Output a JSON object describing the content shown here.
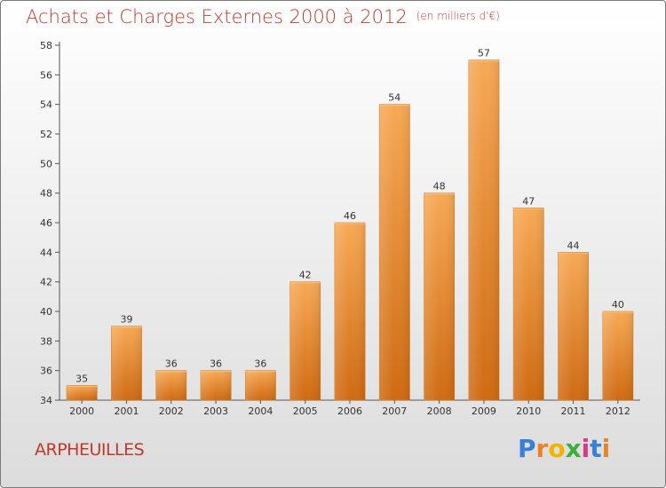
{
  "title": "Achats et Charges Externes 2000 à 2012",
  "unit": "(en milliers d'€)",
  "town": "ARPHEUILLES",
  "logo": {
    "letters": [
      "P",
      "r",
      "o",
      "x",
      "i",
      "t",
      "i"
    ],
    "colors": [
      "#3a7fd5",
      "#e8832a",
      "#f0b400",
      "#3cae3c",
      "#d93a8a",
      "#3a7fd5",
      "#e8832a"
    ]
  },
  "chart_data": {
    "type": "bar",
    "categories": [
      "2000",
      "2001",
      "2002",
      "2003",
      "2004",
      "2005",
      "2006",
      "2007",
      "2008",
      "2009",
      "2010",
      "2011",
      "2012"
    ],
    "values": [
      35,
      39,
      36,
      36,
      36,
      42,
      46,
      54,
      48,
      57,
      47,
      44,
      40
    ],
    "ylim": [
      34,
      58
    ],
    "yticks": [
      34,
      36,
      38,
      40,
      42,
      44,
      46,
      48,
      50,
      52,
      54,
      56,
      58
    ],
    "grid": false,
    "bar_color": "#f0922f"
  }
}
